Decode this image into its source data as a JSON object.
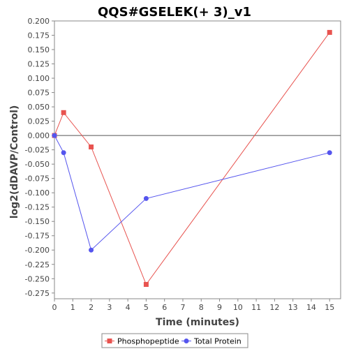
{
  "chart_data": {
    "type": "line",
    "title": "QQS#GSELEK(+ 3)_v1",
    "xlabel": "Time (minutes)",
    "ylabel": "log2(dDAVP/Control)",
    "xlim": [
      0,
      15.6
    ],
    "ylim": [
      -0.285,
      0.2
    ],
    "x_ticks": [
      0,
      1,
      2,
      3,
      4,
      5,
      6,
      7,
      8,
      9,
      10,
      11,
      12,
      13,
      14,
      15
    ],
    "y_ticks": [
      0.2,
      0.175,
      0.15,
      0.125,
      0.1,
      0.075,
      0.05,
      0.025,
      0.0,
      -0.025,
      -0.05,
      -0.075,
      -0.1,
      -0.125,
      -0.15,
      -0.175,
      -0.2,
      -0.225,
      -0.25,
      -0.275
    ],
    "y_tick_labels": [
      "0.200",
      "0.175",
      "0.150",
      "0.125",
      "0.100",
      "0.075",
      "0.050",
      "0.025",
      "0.000",
      "-0.025",
      "-0.050",
      "-0.075",
      "-0.100",
      "-0.125",
      "-0.150",
      "-0.175",
      "-0.200",
      "-0.225",
      "-0.250",
      "-0.275"
    ],
    "zero_line": true,
    "grid": false,
    "legend_position": "bottom",
    "series": [
      {
        "name": "Phosphopeptide",
        "marker": "square",
        "color": "#e8534f",
        "points": [
          {
            "x": 0,
            "y": 0.0
          },
          {
            "x": 0.5,
            "y": 0.04
          },
          {
            "x": 2,
            "y": -0.02
          },
          {
            "x": 5,
            "y": -0.26
          },
          {
            "x": 15,
            "y": 0.18
          }
        ]
      },
      {
        "name": "Total Protein",
        "marker": "circle",
        "color": "#5555ee",
        "points": [
          {
            "x": 0,
            "y": 0.0
          },
          {
            "x": 0.5,
            "y": -0.03
          },
          {
            "x": 2,
            "y": -0.2
          },
          {
            "x": 5,
            "y": -0.11
          },
          {
            "x": 15,
            "y": -0.03
          }
        ]
      }
    ]
  }
}
